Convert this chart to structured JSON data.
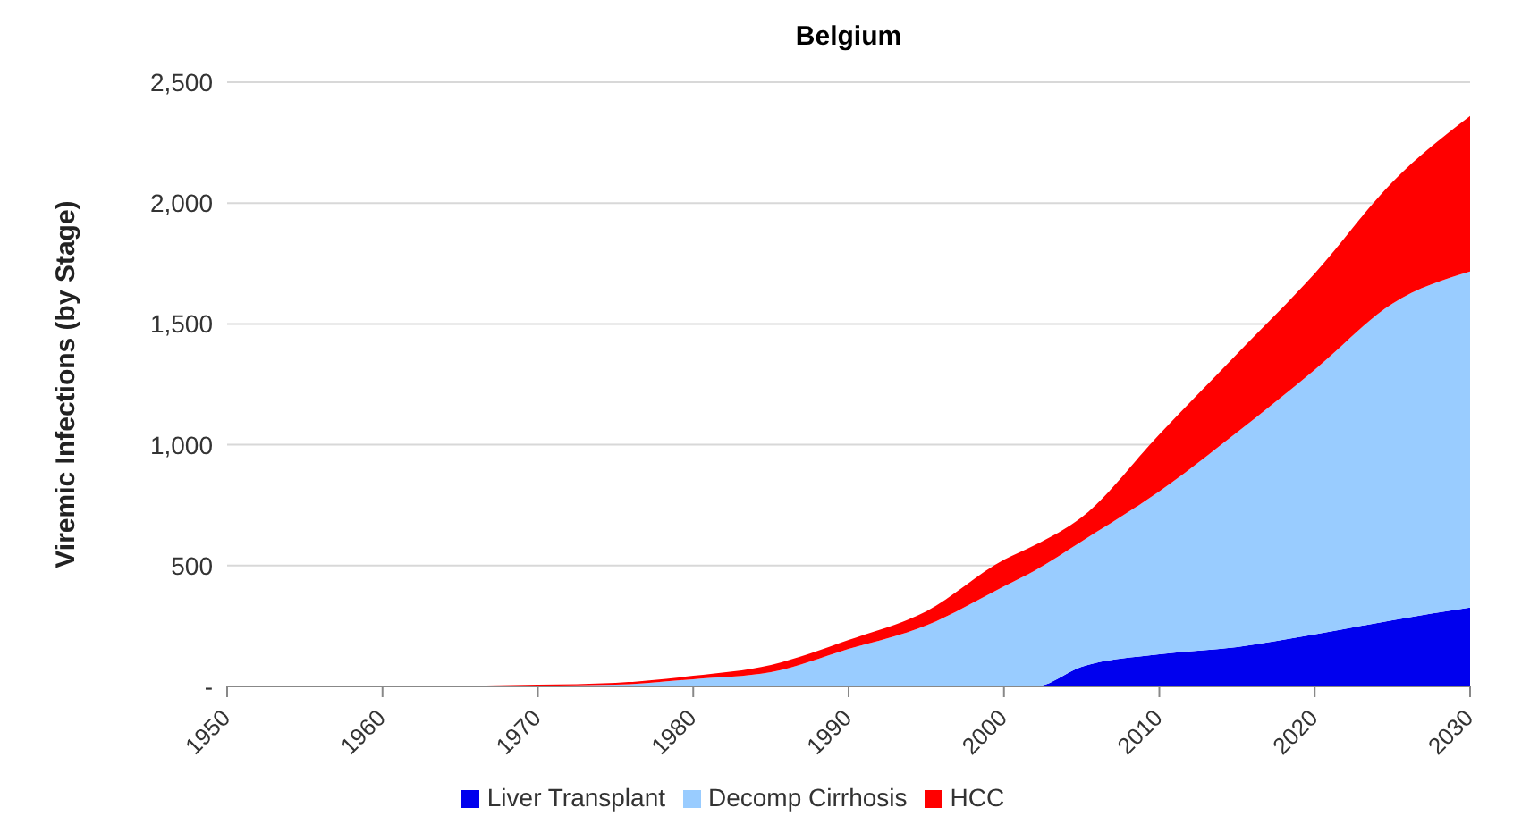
{
  "chart_data": {
    "type": "area",
    "title": "Belgium",
    "ylabel": "Viremic Infections (by Stage)",
    "stacked": true,
    "x": [
      1950,
      1960,
      1965,
      1970,
      1975,
      1980,
      1985,
      1990,
      1995,
      2000,
      2002,
      2005,
      2010,
      2015,
      2020,
      2025,
      2030
    ],
    "series": [
      {
        "name": "Liver Transplant",
        "color": "#0000ee",
        "values": [
          0,
          0,
          0,
          0,
          0,
          0,
          0,
          0,
          0,
          0,
          0,
          81,
          133,
          163,
          215,
          274,
          326
        ]
      },
      {
        "name": "Decomp Cirrhosis",
        "color": "#99ccff",
        "values": [
          0,
          0,
          1,
          3,
          7,
          30,
          59,
          155,
          252,
          414,
          480,
          519,
          674,
          888,
          1095,
          1310,
          1391
        ]
      },
      {
        "name": "HCC",
        "color": "#ff0000",
        "values": [
          0,
          0,
          1,
          4,
          8,
          14,
          30,
          37,
          59,
          110,
          105,
          100,
          236,
          325,
          399,
          503,
          643
        ]
      }
    ],
    "xlim": [
      1950,
      2030
    ],
    "xticks": [
      1950,
      1960,
      1970,
      1980,
      1990,
      2000,
      2010,
      2020,
      2030
    ],
    "ylim": [
      0,
      2500
    ],
    "yticks": [
      {
        "value": 0,
        "label": "-"
      },
      500,
      {
        "value": 1000,
        "label": "1,000"
      },
      {
        "value": 1500,
        "label": "1,500"
      },
      {
        "value": 2000,
        "label": "2,000"
      },
      {
        "value": 2500,
        "label": "2,500"
      }
    ],
    "grid": "y",
    "legend": "bottom"
  }
}
